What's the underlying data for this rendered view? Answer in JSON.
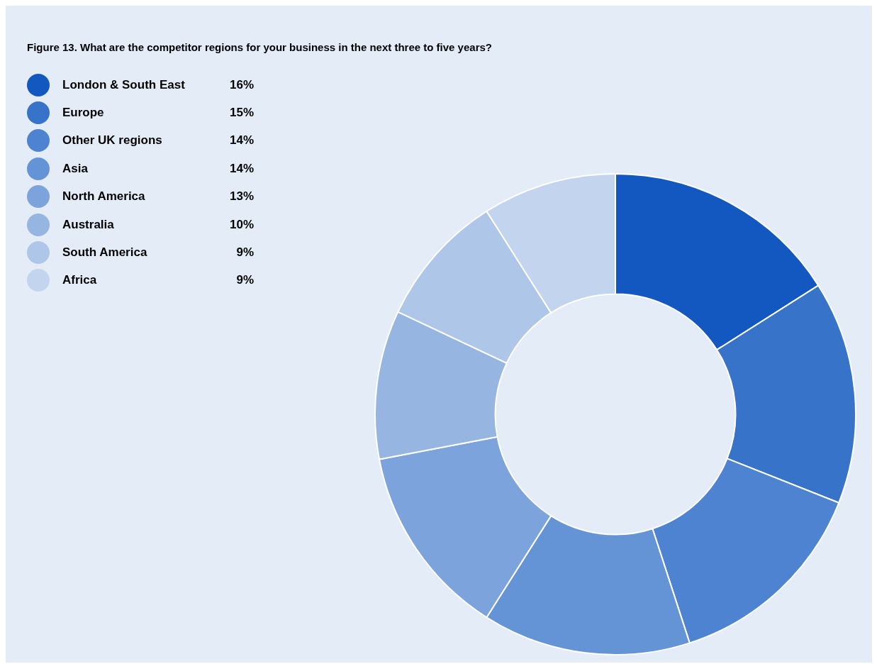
{
  "chart_data": {
    "type": "donut",
    "title": "Figure 13. What are the competitor regions for your business in the next three to five years?",
    "categories": [
      "London & South East",
      "Europe",
      "Other UK regions",
      "Asia",
      "North America",
      "Australia",
      "South America",
      "Africa"
    ],
    "values": [
      16,
      15,
      14,
      14,
      13,
      10,
      9,
      9
    ],
    "value_labels": [
      "16%",
      "15%",
      "14%",
      "14%",
      "13%",
      "10%",
      "9%",
      "9%"
    ],
    "colors": [
      "#1358c0",
      "#3673c9",
      "#4d83d0",
      "#6594d6",
      "#7ca3dc",
      "#96b5e1",
      "#aec6e8",
      "#c3d4ee"
    ],
    "legend": "top left"
  }
}
